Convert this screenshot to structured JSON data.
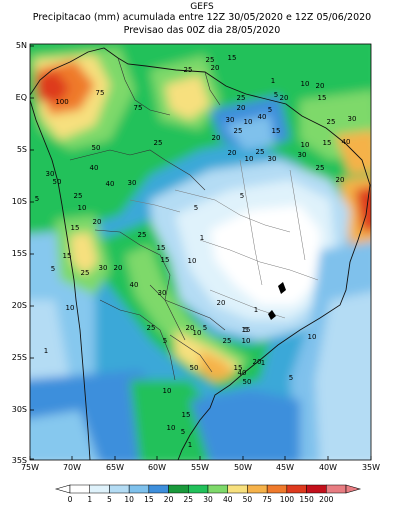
{
  "header": {
    "model": "GEFS",
    "title": "Precipitacao (mm) acumulada entre 12Z 30/05/2020 e 12Z 05/06/2020",
    "subtitle": "Previsao das 00Z dia 28/05/2020"
  },
  "axes": {
    "lat_labels": [
      "5N",
      "EQ",
      "5S",
      "10S",
      "15S",
      "20S",
      "25S",
      "30S",
      "35S"
    ],
    "lon_labels": [
      "75W",
      "70W",
      "65W",
      "60W",
      "55W",
      "50W",
      "45W",
      "40W",
      "35W"
    ]
  },
  "colorbar": {
    "labels": [
      "0",
      "1",
      "5",
      "10",
      "15",
      "20",
      "25",
      "30",
      "40",
      "50",
      "75",
      "100",
      "150",
      "200"
    ],
    "colors": [
      "#ffffff",
      "#dff2fb",
      "#b4dcf4",
      "#7fc1ec",
      "#3e8fdc",
      "#1a9a3c",
      "#22c15a",
      "#7ed96a",
      "#f7e07e",
      "#f5b24a",
      "#ef7a2c",
      "#de3a1e",
      "#c3101b",
      "#e87d82"
    ]
  },
  "contour_labels": [
    {
      "t": "25"
    },
    {
      "t": "15"
    },
    {
      "t": "25"
    },
    {
      "t": "20"
    },
    {
      "t": "100"
    },
    {
      "t": "75"
    },
    {
      "t": "75"
    },
    {
      "t": "50"
    },
    {
      "t": "40"
    },
    {
      "t": "25"
    },
    {
      "t": "20"
    },
    {
      "t": "30"
    },
    {
      "t": "25"
    },
    {
      "t": "20"
    },
    {
      "t": "25"
    },
    {
      "t": "15"
    },
    {
      "t": "10"
    },
    {
      "t": "5"
    },
    {
      "t": "1"
    },
    {
      "t": "5"
    },
    {
      "t": "10"
    },
    {
      "t": "20"
    },
    {
      "t": "15"
    },
    {
      "t": "20"
    },
    {
      "t": "30"
    },
    {
      "t": "25"
    },
    {
      "t": "40"
    },
    {
      "t": "30"
    },
    {
      "t": "25"
    },
    {
      "t": "20"
    },
    {
      "t": "15"
    },
    {
      "t": "10"
    },
    {
      "t": "30"
    },
    {
      "t": "40"
    },
    {
      "t": "50"
    },
    {
      "t": "30"
    },
    {
      "t": "5"
    },
    {
      "t": "15"
    },
    {
      "t": "10"
    },
    {
      "t": "1"
    },
    {
      "t": "5"
    },
    {
      "t": "10"
    },
    {
      "t": "20"
    },
    {
      "t": "25"
    },
    {
      "t": "30"
    },
    {
      "t": "40"
    },
    {
      "t": "25"
    },
    {
      "t": "5"
    },
    {
      "t": "10"
    },
    {
      "t": "15"
    },
    {
      "t": "20"
    },
    {
      "t": "30"
    },
    {
      "t": "25"
    },
    {
      "t": "15"
    },
    {
      "t": "5"
    },
    {
      "t": "10"
    },
    {
      "t": "1"
    },
    {
      "t": "15"
    },
    {
      "t": "20"
    },
    {
      "t": "25"
    },
    {
      "t": "50"
    },
    {
      "t": "40"
    },
    {
      "t": "30"
    },
    {
      "t": "25"
    },
    {
      "t": "20"
    },
    {
      "t": "5"
    },
    {
      "t": "10"
    },
    {
      "t": "20"
    },
    {
      "t": "25"
    },
    {
      "t": "15"
    },
    {
      "t": "10"
    },
    {
      "t": "5"
    },
    {
      "t": "1"
    },
    {
      "t": "1"
    },
    {
      "t": "5"
    },
    {
      "t": "10"
    },
    {
      "t": "15"
    },
    {
      "t": "20"
    },
    {
      "t": "40"
    },
    {
      "t": "50"
    },
    {
      "t": "5"
    },
    {
      "t": "10"
    },
    {
      "t": "15"
    },
    {
      "t": "10"
    },
    {
      "t": "5"
    },
    {
      "t": "1"
    }
  ]
}
